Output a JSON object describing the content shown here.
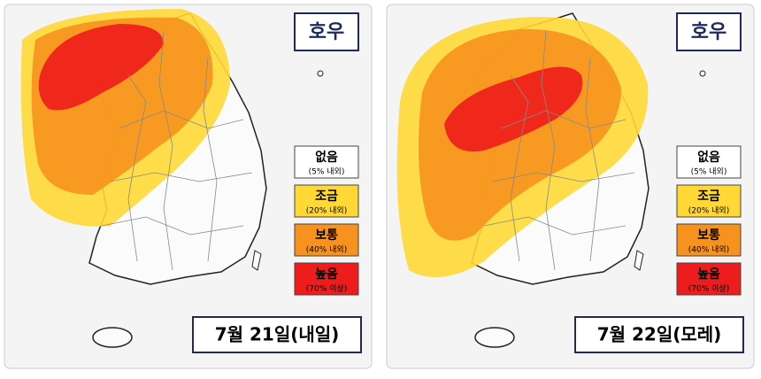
{
  "panels": [
    {
      "title": "호우",
      "date": "7월 21일(내일)",
      "legend": [
        {
          "label": "없음",
          "sublabel": "(5% 내외)",
          "color": "#ffffff"
        },
        {
          "label": "조금",
          "sublabel": "(20% 내외)",
          "color": "#ffd835"
        },
        {
          "label": "보통",
          "sublabel": "(40% 내외)",
          "color": "#f7921e"
        },
        {
          "label": "높음",
          "sublabel": "(70% 이상)",
          "color": "#ee1c1c"
        }
      ]
    },
    {
      "title": "호우",
      "date": "7월 22일(모레)",
      "legend": [
        {
          "label": "없음",
          "sublabel": "(5% 내외)",
          "color": "#ffffff"
        },
        {
          "label": "조금",
          "sublabel": "(20% 내외)",
          "color": "#ffd835"
        },
        {
          "label": "보통",
          "sublabel": "(40% 내외)",
          "color": "#f7921e"
        },
        {
          "label": "높음",
          "sublabel": "(70% 이상)",
          "color": "#ee1c1c"
        }
      ]
    }
  ]
}
